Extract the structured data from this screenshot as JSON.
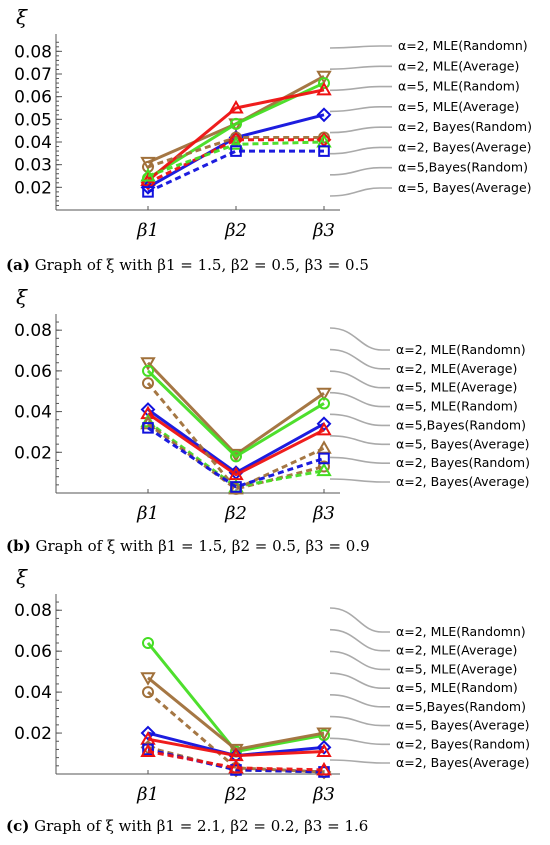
{
  "chart_data": [
    {
      "type": "line",
      "panel_label": "(a)",
      "caption": "Graph of ξ with β1 = 1.5, β2 = 0.5, β3 = 0.5",
      "ylabel": "ξ",
      "categories": [
        "β1",
        "β2",
        "β3"
      ],
      "ylim": [
        0.01,
        0.085
      ],
      "yticks": [
        0.02,
        0.03,
        0.04,
        0.05,
        0.06,
        0.07,
        0.08
      ],
      "ytick_labels": [
        "0.02",
        "0.03",
        "0.04",
        "0.05",
        "0.06",
        "0.07",
        "0.08"
      ],
      "legend": [
        "α=2, MLE(Randomn)",
        "α=2, MLE(Average)",
        "α=5, MLE(Random)",
        "α=5, MLE(Average)",
        "α=2, Bayes(Random)",
        "α=2, Bayes(Average)",
        "α=5,Bayes(Random)",
        "α=5, Bayes(Average)"
      ],
      "series": [
        {
          "color": "#a0703a",
          "dash": false,
          "marker": "triangle-down",
          "values": [
            0.031,
            0.048,
            0.069
          ]
        },
        {
          "color": "#44dd22",
          "dash": false,
          "marker": "circle",
          "values": [
            0.024,
            0.048,
            0.066
          ]
        },
        {
          "color": "#ee1111",
          "dash": false,
          "marker": "triangle-up",
          "values": [
            0.023,
            0.055,
            0.063
          ]
        },
        {
          "color": "#1111dd",
          "dash": false,
          "marker": "diamond",
          "values": [
            0.02,
            0.042,
            0.052
          ]
        },
        {
          "color": "#a0703a",
          "dash": true,
          "marker": "circle",
          "values": [
            0.029,
            0.042,
            0.042
          ]
        },
        {
          "color": "#ee1111",
          "dash": true,
          "marker": "diamond",
          "values": [
            0.022,
            0.041,
            0.041
          ]
        },
        {
          "color": "#44dd22",
          "dash": true,
          "marker": "triangle-up",
          "values": [
            0.025,
            0.039,
            0.04
          ]
        },
        {
          "color": "#1111dd",
          "dash": true,
          "marker": "square",
          "values": [
            0.018,
            0.036,
            0.036
          ]
        }
      ]
    },
    {
      "type": "line",
      "panel_label": "(b)",
      "caption": "Graph of ξ with β1 = 1.5, β2 = 0.5, β3 = 0.9",
      "ylabel": "ξ",
      "categories": [
        "β1",
        "β2",
        "β3"
      ],
      "ylim": [
        0.0,
        0.085
      ],
      "yticks": [
        0.02,
        0.04,
        0.06,
        0.08
      ],
      "ytick_labels": [
        "0.02",
        "0.04",
        "0.06",
        "0.08"
      ],
      "legend": [
        "α=2, MLE(Randomn)",
        "α=2, MLE(Average)",
        "α=5, MLE(Average)",
        "α=5, MLE(Random)",
        "α=5,Bayes(Random)",
        "α=5, Bayes(Average)",
        "α=2, Bayes(Random)",
        "α=2, Bayes(Average)"
      ],
      "series": [
        {
          "color": "#a0703a",
          "dash": false,
          "marker": "triangle-down",
          "values": [
            0.064,
            0.019,
            0.049
          ]
        },
        {
          "color": "#44dd22",
          "dash": false,
          "marker": "circle",
          "values": [
            0.06,
            0.018,
            0.044
          ]
        },
        {
          "color": "#1111dd",
          "dash": false,
          "marker": "diamond",
          "values": [
            0.041,
            0.01,
            0.034
          ]
        },
        {
          "color": "#ee1111",
          "dash": false,
          "marker": "triangle-up",
          "values": [
            0.039,
            0.009,
            0.031
          ]
        },
        {
          "color": "#a0703a",
          "dash": true,
          "marker": "circle",
          "values": [
            0.054,
            0.002,
            0.013
          ]
        },
        {
          "color": "#44dd22",
          "dash": true,
          "marker": "triangle-up",
          "values": [
            0.035,
            0.003,
            0.011
          ]
        },
        {
          "color": "#a0703a",
          "dash": true,
          "marker": "triangle-up",
          "values": [
            0.034,
            0.002,
            0.022
          ]
        },
        {
          "color": "#1111dd",
          "dash": true,
          "marker": "square",
          "values": [
            0.032,
            0.003,
            0.017
          ]
        }
      ]
    },
    {
      "type": "line",
      "panel_label": "(c)",
      "caption": "Graph of ξ with β1 = 2.1, β2 = 0.2, β3 = 1.6",
      "ylabel": "ξ",
      "categories": [
        "β1",
        "β2",
        "β3"
      ],
      "ylim": [
        0.0,
        0.085
      ],
      "yticks": [
        0.02,
        0.04,
        0.06,
        0.08
      ],
      "ytick_labels": [
        "0.02",
        "0.04",
        "0.06",
        "0.08"
      ],
      "legend": [
        "α=2, MLE(Randomn)",
        "α=2, MLE(Average)",
        "α=5, MLE(Average)",
        "α=5, MLE(Random)",
        "α=5,Bayes(Random)",
        "α=5, Bayes(Average)",
        "α=2, Bayes(Random)",
        "α=2, Bayes(Average)"
      ],
      "series": [
        {
          "color": "#44dd22",
          "dash": false,
          "marker": "circle",
          "values": [
            0.064,
            0.011,
            0.019
          ]
        },
        {
          "color": "#a0703a",
          "dash": false,
          "marker": "triangle-down",
          "values": [
            0.047,
            0.012,
            0.02
          ]
        },
        {
          "color": "#a0703a",
          "dash": true,
          "marker": "circle",
          "values": [
            0.04,
            0.003,
            0.001
          ]
        },
        {
          "color": "#1111dd",
          "dash": false,
          "marker": "diamond",
          "values": [
            0.02,
            0.009,
            0.013
          ]
        },
        {
          "color": "#ee1111",
          "dash": false,
          "marker": "triangle-up",
          "values": [
            0.017,
            0.009,
            0.011
          ]
        },
        {
          "color": "#a0703a",
          "dash": true,
          "marker": "diamond",
          "values": [
            0.013,
            0.002,
            0.001
          ]
        },
        {
          "color": "#1111dd",
          "dash": true,
          "marker": "square",
          "values": [
            0.012,
            0.002,
            0.001
          ]
        },
        {
          "color": "#ee1111",
          "dash": true,
          "marker": "triangle-up",
          "values": [
            0.011,
            0.003,
            0.002
          ]
        }
      ]
    }
  ]
}
